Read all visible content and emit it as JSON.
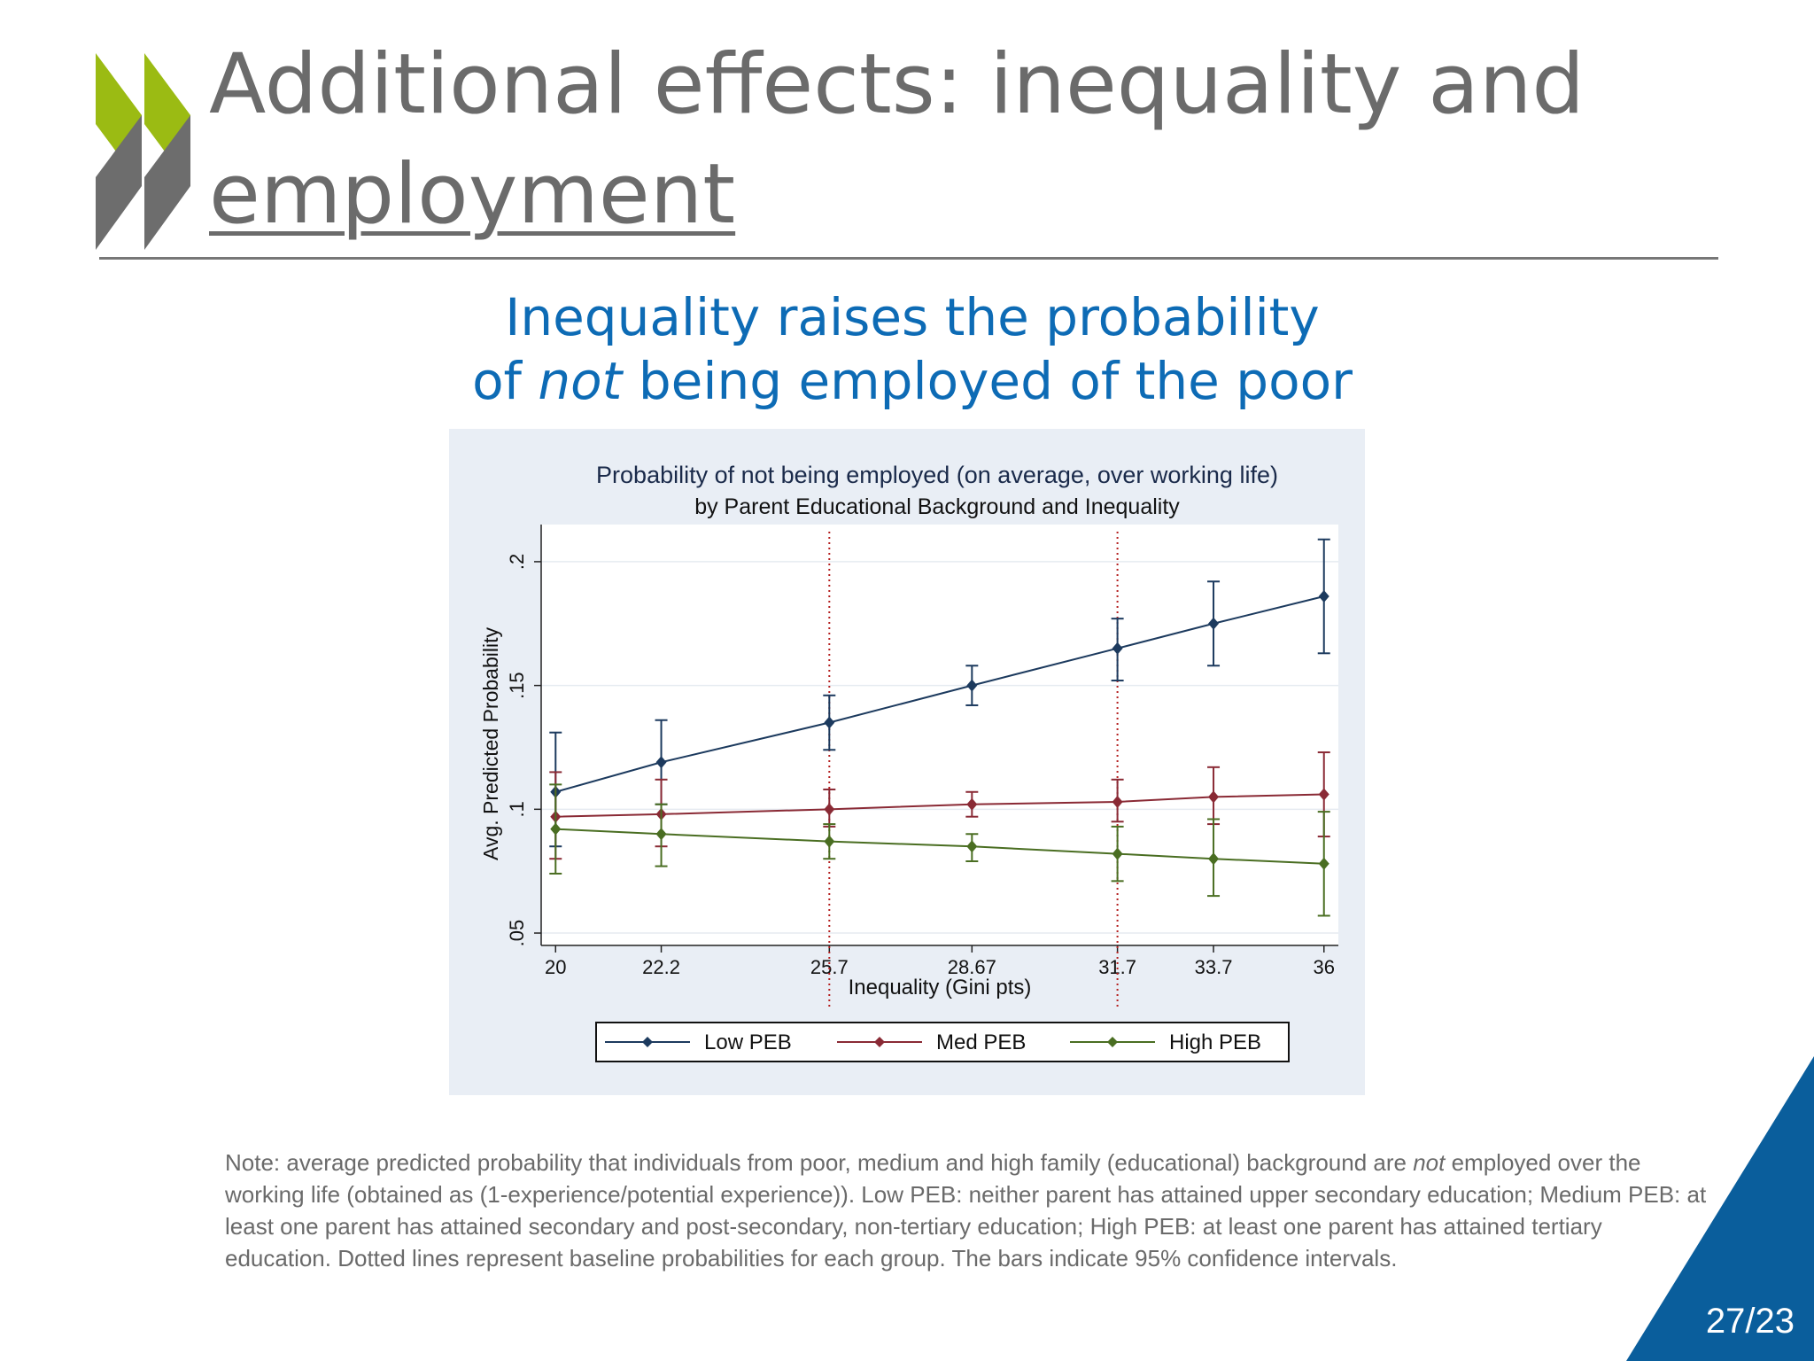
{
  "slide": {
    "title_line1": "Additional effects: inequality and",
    "title_line2": "employment",
    "subtitle_line1": "Inequality raises the probability",
    "subtitle_line2_pre": "of ",
    "subtitle_line2_em": "not",
    "subtitle_line2_post": " being employed of the poor",
    "note_pre": "Note: average predicted probability that individuals from poor, medium and high family (educational) background are ",
    "note_em": "not",
    "note_post": " employed over the working life (obtained as (1-experience/potential experience)). Low PEB: neither parent has attained upper secondary education; Medium PEB: at least one parent has attained secondary and post-secondary, non-tertiary education; High PEB: at least one parent has attained tertiary education. Dotted lines represent baseline probabilities for each group. The bars indicate 95% confidence intervals.",
    "page_number": "27/23"
  },
  "colors": {
    "accent_green": "#9bbb13",
    "logo_gray": "#6d6d6d",
    "subtitle_blue": "#0d6bb5",
    "corner_blue": "#0a5e9c",
    "low_peb": "#1c3a5e",
    "med_peb": "#8a2a35",
    "high_peb": "#4a6e22",
    "baseline": "#b52020"
  },
  "chart_data": {
    "type": "line",
    "title": "Probability of not being employed (on average, over working life)",
    "subtitle": "by Parent Educational Background and Inequality",
    "xlabel": "Inequality (Gini pts)",
    "ylabel": "Avg. Predicted Probability",
    "x": [
      20,
      22.2,
      25.7,
      28.67,
      31.7,
      33.7,
      36
    ],
    "x_tick_labels": [
      "20",
      "22.2",
      "25.7",
      "28.67",
      "31.7",
      "33.7",
      "36"
    ],
    "y_ticks": [
      0.05,
      0.1,
      0.15,
      0.2
    ],
    "y_tick_labels": [
      ".05",
      ".1",
      ".15",
      ".2"
    ],
    "xlim": [
      19.7,
      36.3
    ],
    "ylim": [
      0.045,
      0.215
    ],
    "grid": true,
    "baselines_x": [
      25.7,
      31.7
    ],
    "legend_position": "bottom",
    "series": [
      {
        "name": "Low PEB",
        "values": [
          0.107,
          0.119,
          0.135,
          0.15,
          0.165,
          0.175,
          0.186
        ],
        "ci_low": [
          0.085,
          0.102,
          0.124,
          0.142,
          0.152,
          0.158,
          0.163
        ],
        "ci_high": [
          0.131,
          0.136,
          0.146,
          0.158,
          0.177,
          0.192,
          0.209
        ]
      },
      {
        "name": "Med PEB",
        "values": [
          0.097,
          0.098,
          0.1,
          0.102,
          0.103,
          0.105,
          0.106
        ],
        "ci_low": [
          0.08,
          0.085,
          0.093,
          0.097,
          0.095,
          0.094,
          0.089
        ],
        "ci_high": [
          0.115,
          0.112,
          0.108,
          0.107,
          0.112,
          0.117,
          0.123
        ]
      },
      {
        "name": "High PEB",
        "values": [
          0.092,
          0.09,
          0.087,
          0.085,
          0.082,
          0.08,
          0.078
        ],
        "ci_low": [
          0.074,
          0.077,
          0.08,
          0.079,
          0.071,
          0.065,
          0.057
        ],
        "ci_high": [
          0.11,
          0.102,
          0.094,
          0.09,
          0.093,
          0.096,
          0.099
        ]
      }
    ]
  }
}
